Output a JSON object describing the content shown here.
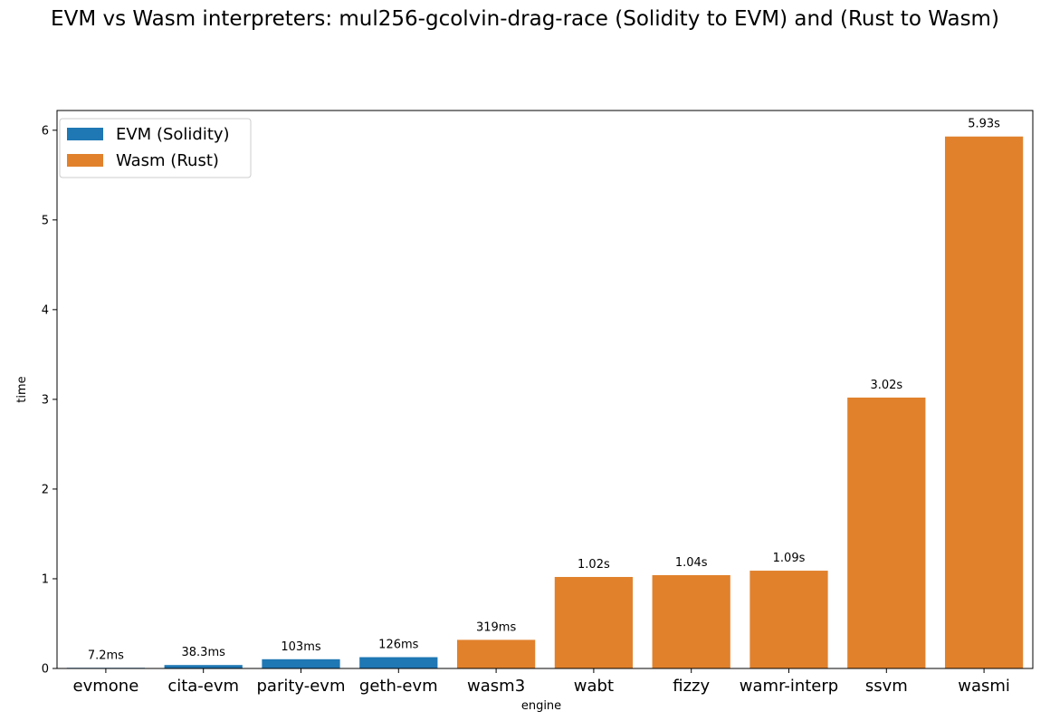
{
  "chart_data": {
    "type": "bar",
    "title": "EVM vs Wasm interpreters: mul256-gcolvin-drag-race (Solidity to EVM) and (Rust to Wasm)",
    "xlabel": "engine",
    "ylabel": "time",
    "ylim": [
      0,
      6.22
    ],
    "yticks": [
      0,
      1,
      2,
      3,
      4,
      5,
      6
    ],
    "grid": false,
    "legend_position": "top-left",
    "series": [
      {
        "name": "EVM (Solidity)",
        "color": "#1f77b4"
      },
      {
        "name": "Wasm (Rust)",
        "color": "#e1812c"
      }
    ],
    "categories": [
      "evmone",
      "cita-evm",
      "parity-evm",
      "geth-evm",
      "wasm3",
      "wabt",
      "fizzy",
      "wamr-interp",
      "ssvm",
      "wasmi"
    ],
    "values": [
      0.0072,
      0.0383,
      0.103,
      0.126,
      0.319,
      1.02,
      1.04,
      1.09,
      3.02,
      5.93
    ],
    "bar_series": [
      0,
      0,
      0,
      0,
      1,
      1,
      1,
      1,
      1,
      1
    ],
    "data_labels": [
      "7.2ms",
      "38.3ms",
      "103ms",
      "126ms",
      "319ms",
      "1.02s",
      "1.04s",
      "1.09s",
      "3.02s",
      "5.93s"
    ]
  }
}
